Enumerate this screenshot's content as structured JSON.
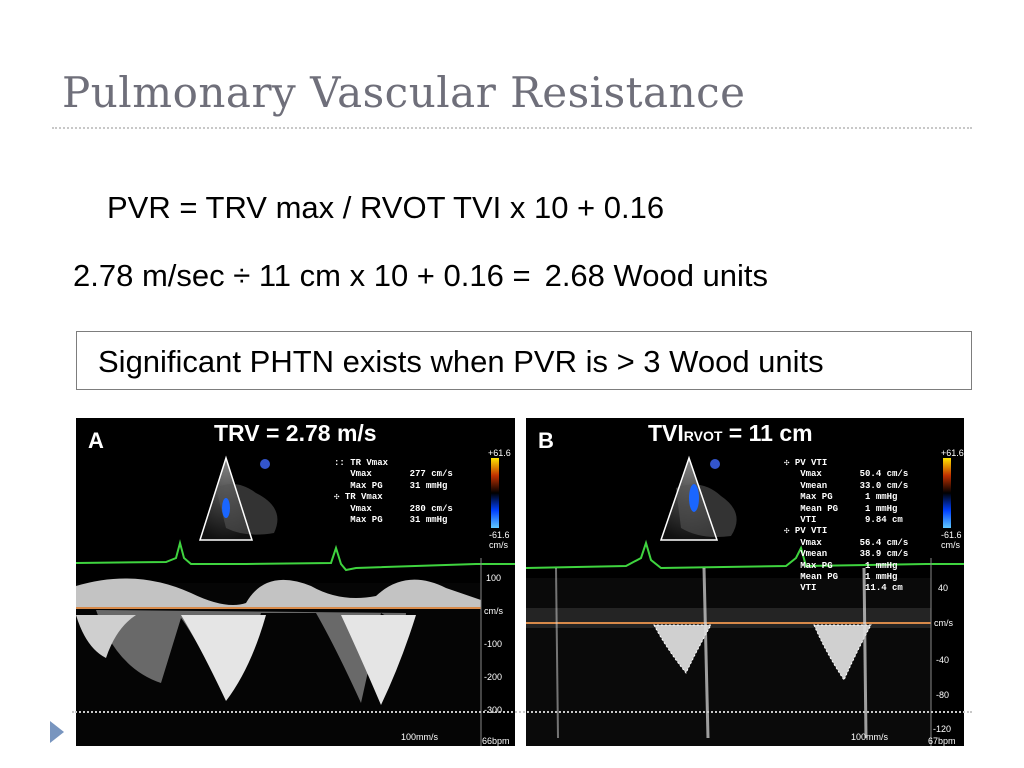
{
  "slide": {
    "title": "Pulmonary Vascular Resistance",
    "formula": "PVR = TRV max / RVOT TVI x 10 + 0.16",
    "calc_left": "2.78 m/sec ÷ 11 cm x 10 + 0.16 =",
    "calc_right": "2.68 Wood units",
    "note": "Significant PHTN exists when PVR is > 3 Wood units"
  },
  "panel_a": {
    "letter": "A",
    "heading": "TRV = 2.78 m/s",
    "readout": ":: TR Vmax\n   Vmax       277 cm/s\n   Max PG     31 mmHg\n✣ TR Vmax\n   Vmax       280 cm/s\n   Max PG     31 mmHg",
    "scale_top": "+61.6",
    "scale_bottom": "-61.6",
    "scale_unit": "cm/s",
    "ticks": [
      "100",
      "cm/s",
      "-100",
      "-200",
      "-300"
    ],
    "sweep": "100mm/s",
    "hr": "66bpm"
  },
  "panel_b": {
    "letter": "B",
    "heading_main": "TVI",
    "heading_sub": "RVOT",
    "heading_rest": " = 11 cm",
    "readout": "✣ PV VTI\n   Vmax       50.4 cm/s\n   Vmean      33.0 cm/s\n   Max PG      1 mmHg\n   Mean PG     1 mmHg\n   VTI         9.84 cm\n✣ PV VTI\n   Vmax       56.4 cm/s\n   Vmean      38.9 cm/s\n   Max PG      1 mmHg\n   Mean PG     1 mmHg\n   VTI         11.4 cm",
    "scale_top": "+61.6",
    "scale_bottom": "-61.6",
    "scale_unit": "cm/s",
    "ticks": [
      "40",
      "cm/s",
      "-40",
      "-80",
      "-120"
    ],
    "sweep": "100mm/s",
    "hr": "67bpm"
  }
}
